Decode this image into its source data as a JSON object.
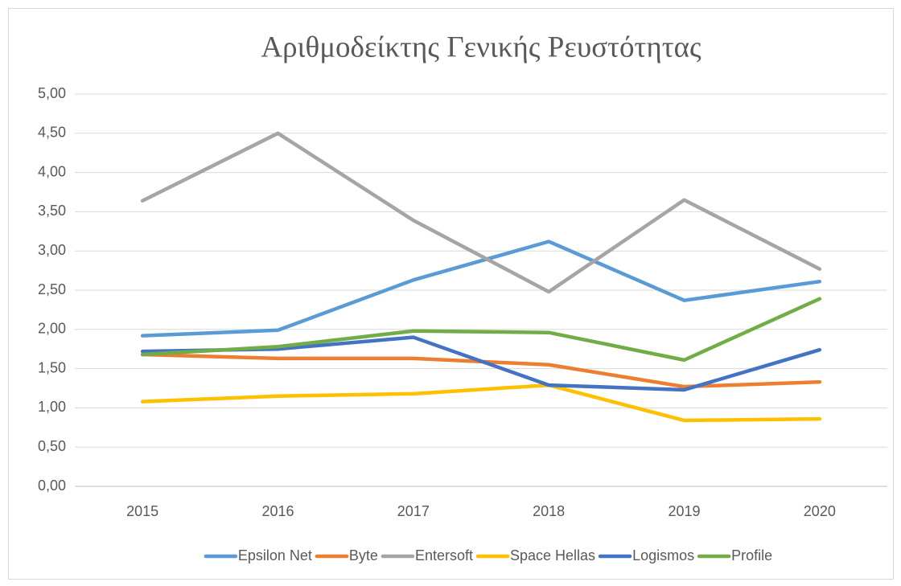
{
  "chart_data": {
    "type": "line",
    "title": "Αριθμοδείκτης Γενικής Ρευστότητας",
    "categories": [
      "2015",
      "2016",
      "2017",
      "2018",
      "2019",
      "2020"
    ],
    "series": [
      {
        "name": "Epsilon Net",
        "color": "#5b9bd5",
        "values": [
          1.92,
          1.99,
          2.63,
          3.12,
          2.37,
          2.61
        ]
      },
      {
        "name": "Byte",
        "color": "#ed7d31",
        "values": [
          1.68,
          1.63,
          1.63,
          1.55,
          1.27,
          1.33
        ]
      },
      {
        "name": "Entersoft",
        "color": "#a5a5a5",
        "values": [
          3.64,
          4.5,
          3.39,
          2.48,
          3.65,
          2.77
        ]
      },
      {
        "name": "Space Hellas",
        "color": "#ffc000",
        "values": [
          1.08,
          1.15,
          1.18,
          1.29,
          0.84,
          0.86
        ]
      },
      {
        "name": "Logismos",
        "color": "#4472c4",
        "values": [
          1.72,
          1.75,
          1.9,
          1.29,
          1.23,
          1.74
        ]
      },
      {
        "name": "Profile",
        "color": "#70ad47",
        "values": [
          1.68,
          1.78,
          1.98,
          1.96,
          1.61,
          2.39
        ]
      }
    ],
    "ylim": [
      0,
      5
    ],
    "yticks": [
      {
        "value": 0,
        "label": "0,00"
      },
      {
        "value": 0.5,
        "label": "0,50"
      },
      {
        "value": 1,
        "label": "1,00"
      },
      {
        "value": 1.5,
        "label": "1,50"
      },
      {
        "value": 2,
        "label": "2,00"
      },
      {
        "value": 2.5,
        "label": "2,50"
      },
      {
        "value": 3,
        "label": "3,00"
      },
      {
        "value": 3.5,
        "label": "3,50"
      },
      {
        "value": 4,
        "label": "4,00"
      },
      {
        "value": 4.5,
        "label": "4,50"
      },
      {
        "value": 5,
        "label": "5,00"
      }
    ],
    "grid": true,
    "legend": "bottom"
  }
}
